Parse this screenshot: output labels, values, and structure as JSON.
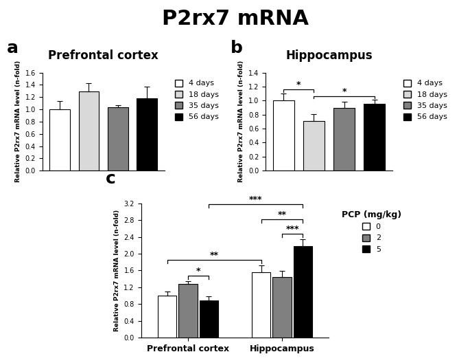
{
  "title": "P2rx7 mRNA",
  "chart_data": [
    {
      "label": "a",
      "type": "bar",
      "title": "Prefrontal cortex",
      "y_label": "Relative P2rx7 mRNA level (n-fold)",
      "categories": [
        "4 days",
        "18 days",
        "35 days",
        "56 days"
      ],
      "values": [
        1.0,
        1.29,
        1.03,
        1.18
      ],
      "errors": [
        0.13,
        0.14,
        0.04,
        0.19
      ],
      "colors": [
        "#ffffff",
        "#d9d9d9",
        "#808080",
        "#000000"
      ],
      "ylim": [
        0,
        1.6
      ],
      "yticks": [
        {
          "value": 0,
          "label": "0.0"
        },
        {
          "value": 0.2,
          "label": "0.2"
        },
        {
          "value": 0.4,
          "label": "0.4"
        },
        {
          "value": 0.6,
          "label": "0.6"
        },
        {
          "value": 0.8,
          "label": "0.8"
        },
        {
          "value": 1.0,
          "label": "1.0"
        },
        {
          "value": 1.2,
          "label": "1.2"
        },
        {
          "value": 1.4,
          "label": "1.4"
        },
        {
          "value": 1.6,
          "label": "1.6"
        }
      ],
      "legend": "right",
      "tick_labels": "y",
      "annotations": []
    },
    {
      "label": "b",
      "type": "bar",
      "title": "Hippocampus",
      "y_label": "Relative P2rx7 mRNA level (n-fold)",
      "categories": [
        "4 days",
        "18 days",
        "35 days",
        "56 days"
      ],
      "values": [
        1.0,
        0.71,
        0.9,
        0.95
      ],
      "errors": [
        0.1,
        0.1,
        0.08,
        0.06
      ],
      "colors": [
        "#ffffff",
        "#d9d9d9",
        "#808080",
        "#000000"
      ],
      "ylim": [
        0,
        1.4
      ],
      "yticks": [
        {
          "value": 0,
          "label": "0.0"
        },
        {
          "value": 0.2,
          "label": "0.2"
        },
        {
          "value": 0.4,
          "label": "0.4"
        },
        {
          "value": 0.6,
          "label": "0.6"
        },
        {
          "value": 0.8,
          "label": "0.8"
        },
        {
          "value": 1.0,
          "label": "1.0"
        },
        {
          "value": 1.2,
          "label": "1.2"
        },
        {
          "value": 1.4,
          "label": "1.4"
        }
      ],
      "legend": "right",
      "tick_labels": "y",
      "annotations": [
        {
          "from": 0,
          "to": 1,
          "text": "*"
        },
        {
          "from": 1,
          "to": 3,
          "text": "*"
        }
      ]
    },
    {
      "label": "c",
      "type": "grouped_bar",
      "y_label": "Relative P2rx7 mRNA level (n-fold)",
      "categories": [
        "Prefrontal cortex",
        "Hippocampus"
      ],
      "legend_title": "PCP (mg/kg)",
      "series": [
        {
          "name": "0",
          "color": "#ffffff",
          "values": [
            1.0,
            1.55
          ],
          "errors": [
            0.1,
            0.17
          ]
        },
        {
          "name": "2",
          "color": "#808080",
          "values": [
            1.28,
            1.44
          ],
          "errors": [
            0.06,
            0.15
          ]
        },
        {
          "name": "5",
          "color": "#000000",
          "values": [
            0.88,
            2.18
          ],
          "errors": [
            0.1,
            0.16
          ]
        }
      ],
      "ylim": [
        0,
        3.2
      ],
      "yticks": [
        {
          "value": 0,
          "label": "0.0"
        },
        {
          "value": 0.4,
          "label": "0.4"
        },
        {
          "value": 0.8,
          "label": "0.8"
        },
        {
          "value": 1.2,
          "label": "1.2"
        },
        {
          "value": 1.6,
          "label": "1.6"
        },
        {
          "value": 2.0,
          "label": "2.0"
        },
        {
          "value": 2.4,
          "label": "2.4"
        },
        {
          "value": 2.8,
          "label": "2.8"
        },
        {
          "value": 3.2,
          "label": "3.2"
        }
      ],
      "legend": "right",
      "annotations": [
        {
          "from": [
            1,
            0
          ],
          "to": [
            2,
            0
          ],
          "text": "*"
        },
        {
          "from": [
            1,
            1
          ],
          "to": [
            2,
            1
          ],
          "text": "***"
        },
        {
          "from": [
            0,
            1
          ],
          "to": [
            2,
            1
          ],
          "text": "**"
        },
        {
          "from": [
            0,
            0
          ],
          "to": [
            0,
            1
          ],
          "text": "**"
        },
        {
          "from": [
            2,
            0
          ],
          "to": [
            2,
            1
          ],
          "text": "***"
        }
      ]
    }
  ]
}
